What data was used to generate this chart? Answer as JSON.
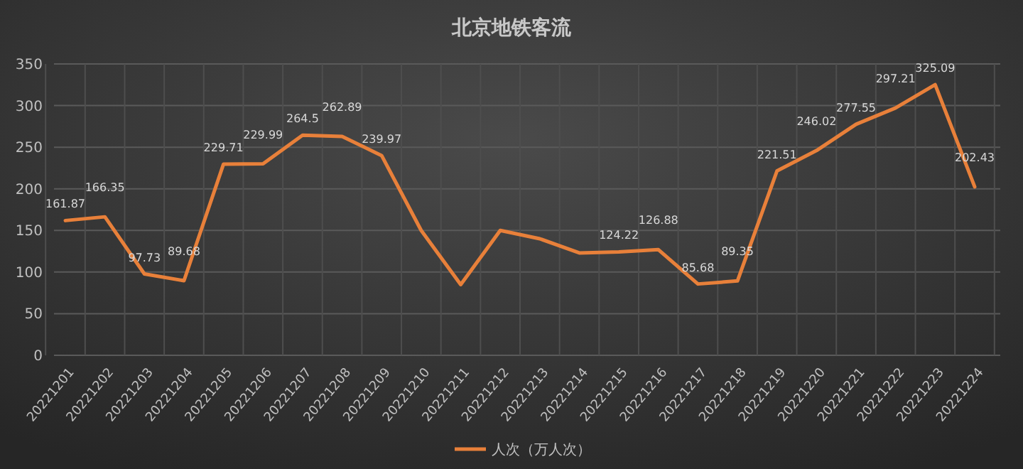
{
  "chart_data": {
    "type": "line",
    "title": "北京地铁客流",
    "categories": [
      "20221201",
      "20221202",
      "20221203",
      "20221204",
      "20221205",
      "20221206",
      "20221207",
      "20221208",
      "20221209",
      "20221210",
      "20221211",
      "20221212",
      "20221213",
      "20221214",
      "20221215",
      "20221216",
      "20221217",
      "20221218",
      "20221219",
      "20221220",
      "20221221",
      "20221222",
      "20221223",
      "20221224"
    ],
    "series": [
      {
        "name": "人次（万人次）",
        "color": "#e8803a",
        "values": [
          161.87,
          166.35,
          97.73,
          89.68,
          229.71,
          229.99,
          264.5,
          262.89,
          239.97,
          150,
          85,
          150,
          140,
          123,
          124.22,
          126.88,
          85.68,
          89.35,
          221.51,
          246.02,
          277.55,
          297.21,
          325.09,
          202.43
        ],
        "value_labels": [
          "161.87",
          "166.35",
          "97.73",
          "89.68",
          "229.71",
          "229.99",
          "264.5",
          "262.89",
          "239.97",
          null,
          null,
          null,
          null,
          null,
          "124.22",
          "126.88",
          "85.68",
          "89.35",
          "221.51",
          "246.02",
          "277.55",
          "297.21",
          "325.09",
          "202.43"
        ]
      }
    ],
    "ylim": [
      0,
      350
    ],
    "yticks": [
      0,
      50,
      100,
      150,
      200,
      250,
      300,
      350
    ],
    "grid": true,
    "legend": "bottom",
    "marker": "none",
    "line_style": "solid"
  }
}
